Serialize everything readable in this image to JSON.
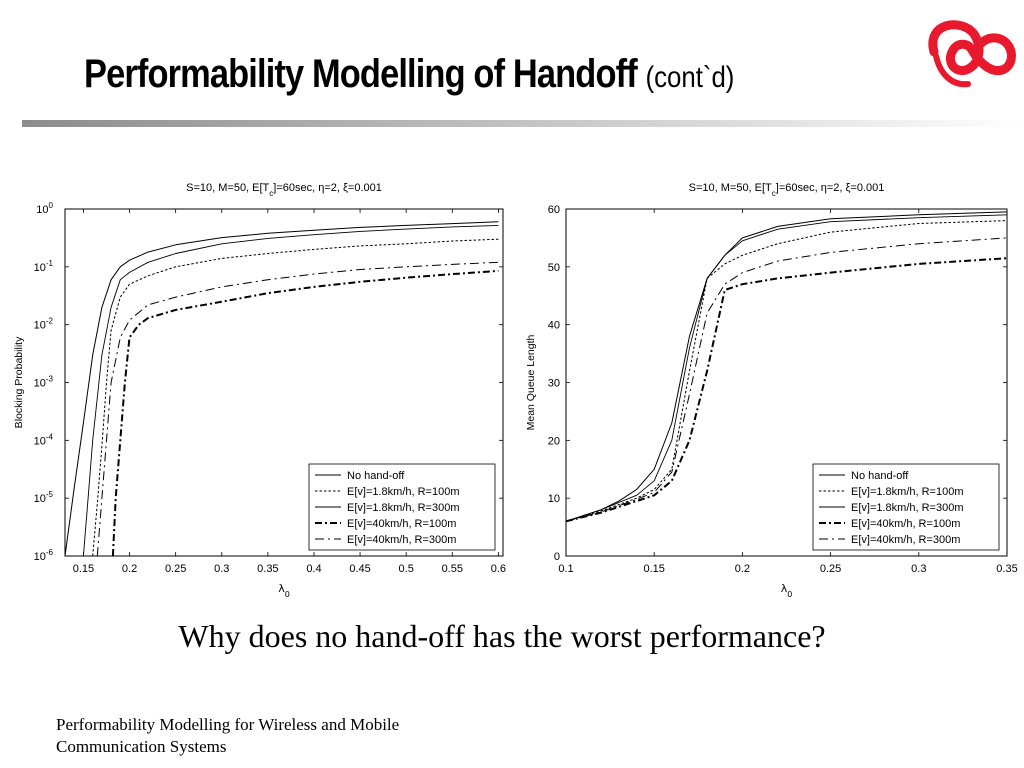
{
  "slide": {
    "title": "Performability Modelling of Handoff",
    "title_suffix": "(cont`d)",
    "question": "Why does no hand-off has the worst performance?",
    "footer": "Performability Modelling for Wireless and Mobile Communication Systems",
    "logo_icon": "red-ribbon-logo",
    "logo_color": "#e8192c",
    "rule_color": "#8c8c8c"
  },
  "chart_data": [
    {
      "type": "line",
      "title_html": "S=10, M=50, E[T<tspan baseline-shift='sub' font-size='8'>c</tspan>]=60sec, η=2, ξ=0.001",
      "xlabel_html": "λ<tspan baseline-shift='sub' font-size='8'>0</tspan>",
      "ylabel": "Blocking Probability",
      "yscale": "log",
      "xlim": [
        0.13,
        0.605
      ],
      "ylim": [
        1e-06,
        1
      ],
      "xticks": [
        0.15,
        0.2,
        0.25,
        0.3,
        0.35,
        0.4,
        0.45,
        0.5,
        0.55,
        0.6
      ],
      "xtick_labels": [
        "0.15",
        "0.2",
        "0.25",
        "0.3",
        "0.35",
        "0.4",
        "0.45",
        "0.5",
        "0.55",
        "0.6"
      ],
      "ytick_exponents": [
        0,
        -1,
        -2,
        -3,
        -4,
        -5,
        -6
      ],
      "legend_position": "bottom-right",
      "series": [
        {
          "name": "No hand-off",
          "style": "solid",
          "points": [
            [
              0.13,
              1e-06
            ],
            [
              0.14,
              1.5e-05
            ],
            [
              0.15,
              0.0002
            ],
            [
              0.16,
              0.003
            ],
            [
              0.17,
              0.02
            ],
            [
              0.18,
              0.06
            ],
            [
              0.19,
              0.1
            ],
            [
              0.2,
              0.13
            ],
            [
              0.22,
              0.18
            ],
            [
              0.25,
              0.24
            ],
            [
              0.3,
              0.32
            ],
            [
              0.35,
              0.38
            ],
            [
              0.4,
              0.43
            ],
            [
              0.45,
              0.48
            ],
            [
              0.5,
              0.52
            ],
            [
              0.55,
              0.56
            ],
            [
              0.6,
              0.6
            ]
          ]
        },
        {
          "name": "E[v]=1.8km/h, R=100m",
          "style": "dotted",
          "points": [
            [
              0.16,
              1e-06
            ],
            [
              0.165,
              8e-06
            ],
            [
              0.17,
              8e-05
            ],
            [
              0.175,
              0.001
            ],
            [
              0.18,
              0.008
            ],
            [
              0.19,
              0.03
            ],
            [
              0.2,
              0.05
            ],
            [
              0.22,
              0.07
            ],
            [
              0.25,
              0.1
            ],
            [
              0.3,
              0.14
            ],
            [
              0.35,
              0.17
            ],
            [
              0.4,
              0.2
            ],
            [
              0.45,
              0.23
            ],
            [
              0.5,
              0.25
            ],
            [
              0.55,
              0.28
            ],
            [
              0.6,
              0.3
            ]
          ]
        },
        {
          "name": "E[v]=1.8km/h, R=300m",
          "style": "solid-thin",
          "points": [
            [
              0.15,
              1e-06
            ],
            [
              0.155,
              1e-05
            ],
            [
              0.16,
              0.0001
            ],
            [
              0.17,
              0.003
            ],
            [
              0.18,
              0.02
            ],
            [
              0.19,
              0.06
            ],
            [
              0.2,
              0.08
            ],
            [
              0.22,
              0.12
            ],
            [
              0.25,
              0.17
            ],
            [
              0.3,
              0.25
            ],
            [
              0.35,
              0.31
            ],
            [
              0.4,
              0.36
            ],
            [
              0.45,
              0.41
            ],
            [
              0.5,
              0.45
            ],
            [
              0.55,
              0.49
            ],
            [
              0.6,
              0.52
            ]
          ]
        },
        {
          "name": "E[v]=40km/h, R=100m",
          "style": "dashdot-bold",
          "points": [
            [
              0.182,
              1e-06
            ],
            [
              0.185,
              1e-05
            ],
            [
              0.19,
              0.0001
            ],
            [
              0.195,
              0.001
            ],
            [
              0.2,
              0.006
            ],
            [
              0.21,
              0.01
            ],
            [
              0.22,
              0.013
            ],
            [
              0.25,
              0.018
            ],
            [
              0.3,
              0.025
            ],
            [
              0.35,
              0.035
            ],
            [
              0.4,
              0.045
            ],
            [
              0.45,
              0.055
            ],
            [
              0.5,
              0.065
            ],
            [
              0.55,
              0.075
            ],
            [
              0.6,
              0.085
            ]
          ]
        },
        {
          "name": "E[v]=40km/h, R=300m",
          "style": "dashdot",
          "points": [
            [
              0.165,
              1e-06
            ],
            [
              0.17,
              1e-05
            ],
            [
              0.175,
              0.0001
            ],
            [
              0.18,
              0.001
            ],
            [
              0.19,
              0.006
            ],
            [
              0.2,
              0.012
            ],
            [
              0.22,
              0.022
            ],
            [
              0.25,
              0.03
            ],
            [
              0.3,
              0.045
            ],
            [
              0.35,
              0.06
            ],
            [
              0.4,
              0.075
            ],
            [
              0.45,
              0.09
            ],
            [
              0.5,
              0.1
            ],
            [
              0.55,
              0.11
            ],
            [
              0.6,
              0.12
            ]
          ]
        }
      ]
    },
    {
      "type": "line",
      "title_html": "S=10, M=50, E[T<tspan baseline-shift='sub' font-size='8'>c</tspan>]=60sec, η=2, ξ=0.001",
      "xlabel_html": "λ<tspan baseline-shift='sub' font-size='8'>0</tspan>",
      "ylabel": "Mean Queue Length",
      "yscale": "linear",
      "xlim": [
        0.1,
        0.35
      ],
      "ylim": [
        0,
        60
      ],
      "xticks": [
        0.1,
        0.15,
        0.2,
        0.25,
        0.3,
        0.35
      ],
      "xtick_labels": [
        "0.1",
        "0.15",
        "0.2",
        "0.25",
        "0.3",
        "0.35"
      ],
      "yticks": [
        0,
        10,
        20,
        30,
        40,
        50,
        60
      ],
      "ytick_labels": [
        "0",
        "10",
        "20",
        "30",
        "40",
        "50",
        "60"
      ],
      "legend_position": "bottom-right",
      "series": [
        {
          "name": "No hand-off",
          "style": "solid",
          "points": [
            [
              0.1,
              6
            ],
            [
              0.12,
              8
            ],
            [
              0.13,
              9.5
            ],
            [
              0.14,
              11.5
            ],
            [
              0.15,
              15
            ],
            [
              0.16,
              23
            ],
            [
              0.17,
              38
            ],
            [
              0.18,
              48
            ],
            [
              0.19,
              52
            ],
            [
              0.2,
              55
            ],
            [
              0.22,
              57
            ],
            [
              0.25,
              58.3
            ],
            [
              0.3,
              59
            ],
            [
              0.35,
              59.5
            ]
          ]
        },
        {
          "name": "E[v]=1.8km/h, R=100m",
          "style": "dotted",
          "points": [
            [
              0.1,
              6
            ],
            [
              0.12,
              7.8
            ],
            [
              0.14,
              10
            ],
            [
              0.15,
              11.5
            ],
            [
              0.16,
              15
            ],
            [
              0.17,
              32
            ],
            [
              0.18,
              48
            ],
            [
              0.19,
              50.5
            ],
            [
              0.2,
              52
            ],
            [
              0.22,
              54
            ],
            [
              0.25,
              56
            ],
            [
              0.3,
              57.5
            ],
            [
              0.35,
              58
            ]
          ]
        },
        {
          "name": "E[v]=1.8km/h, R=300m",
          "style": "solid-thin",
          "points": [
            [
              0.1,
              6
            ],
            [
              0.12,
              8
            ],
            [
              0.14,
              10.5
            ],
            [
              0.15,
              13
            ],
            [
              0.16,
              20
            ],
            [
              0.17,
              36
            ],
            [
              0.18,
              48
            ],
            [
              0.19,
              52
            ],
            [
              0.2,
              54.5
            ],
            [
              0.22,
              56.5
            ],
            [
              0.25,
              57.8
            ],
            [
              0.3,
              58.5
            ],
            [
              0.35,
              59
            ]
          ]
        },
        {
          "name": "E[v]=40km/h, R=100m",
          "style": "dashdot-bold",
          "points": [
            [
              0.1,
              6
            ],
            [
              0.12,
              7.5
            ],
            [
              0.14,
              9.5
            ],
            [
              0.15,
              10.5
            ],
            [
              0.16,
              13
            ],
            [
              0.17,
              20
            ],
            [
              0.18,
              32
            ],
            [
              0.19,
              46
            ],
            [
              0.2,
              47
            ],
            [
              0.22,
              48
            ],
            [
              0.25,
              49
            ],
            [
              0.3,
              50.5
            ],
            [
              0.35,
              51.5
            ]
          ]
        },
        {
          "name": "E[v]=40km/h, R=300m",
          "style": "dashdot",
          "points": [
            [
              0.1,
              6
            ],
            [
              0.12,
              7.6
            ],
            [
              0.14,
              9.8
            ],
            [
              0.15,
              11
            ],
            [
              0.16,
              14.5
            ],
            [
              0.17,
              28
            ],
            [
              0.18,
              42
            ],
            [
              0.19,
              47
            ],
            [
              0.2,
              49
            ],
            [
              0.22,
              51
            ],
            [
              0.25,
              52.5
            ],
            [
              0.3,
              54
            ],
            [
              0.35,
              55
            ]
          ]
        }
      ]
    }
  ]
}
